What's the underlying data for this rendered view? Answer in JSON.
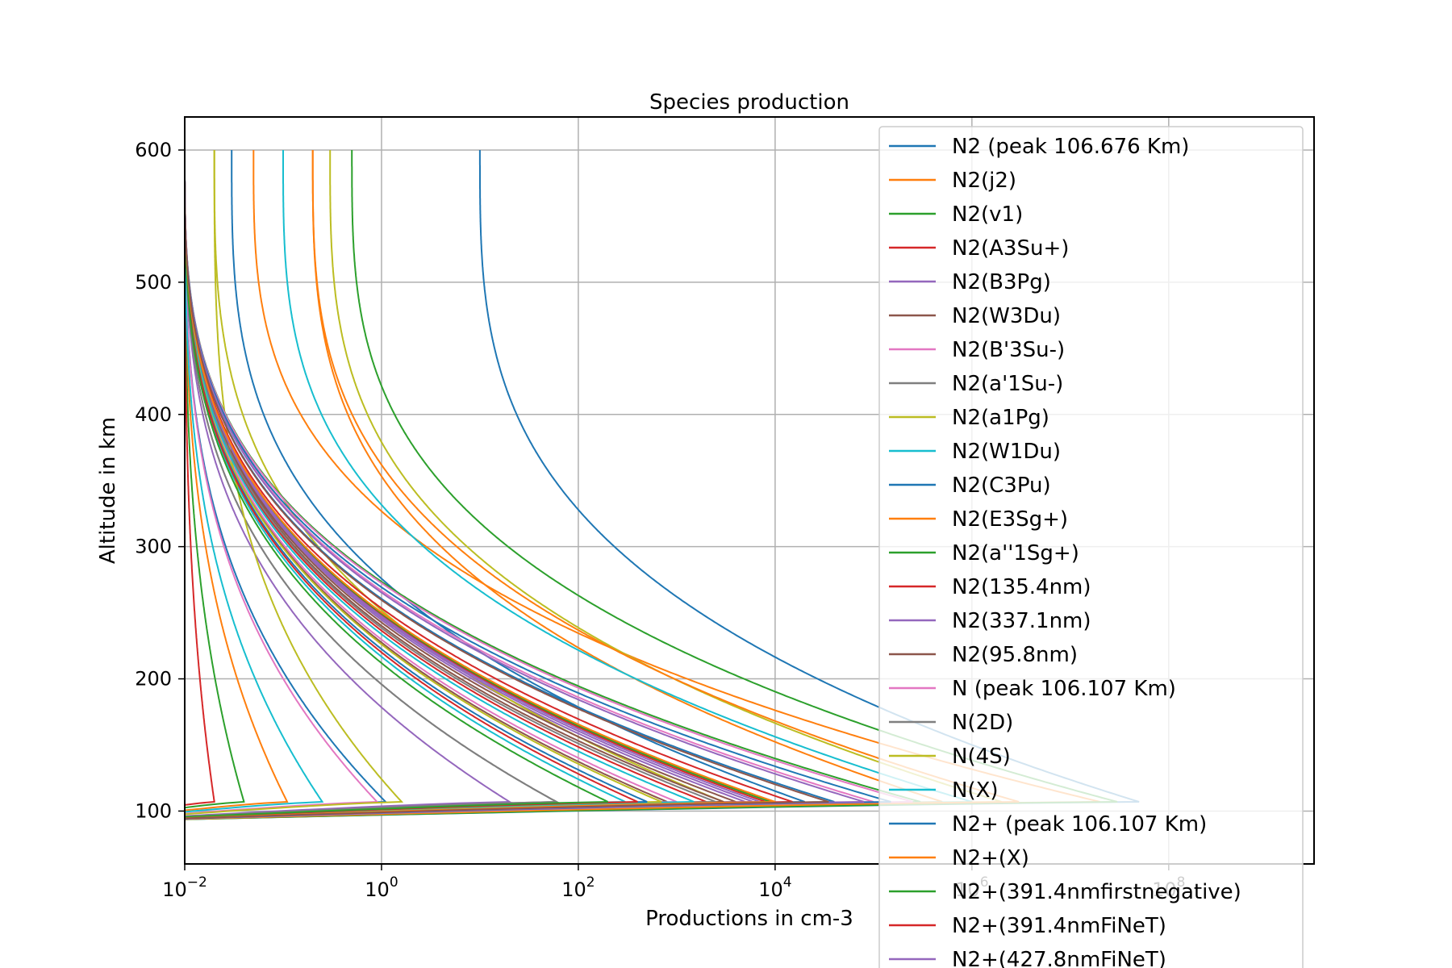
{
  "chart_data": {
    "type": "line",
    "title": "Species production",
    "xlabel": "Productions in cm-3",
    "ylabel": "Altitude in km",
    "xscale": "log",
    "xlim": [
      0.01,
      3000000000
    ],
    "ylim": [
      60,
      625
    ],
    "x_ticks": [
      {
        "value": 0.01,
        "base": "10",
        "exp": "−2"
      },
      {
        "value": 1,
        "base": "10",
        "exp": "0"
      },
      {
        "value": 100,
        "base": "10",
        "exp": "2"
      },
      {
        "value": 10000,
        "base": "10",
        "exp": "4"
      },
      {
        "value": 1000000,
        "base": "10",
        "exp": "6"
      },
      {
        "value": 100000000,
        "base": "10",
        "exp": "8"
      }
    ],
    "y_ticks": [
      100,
      200,
      300,
      400,
      500,
      600
    ],
    "grid": true,
    "legend_position": "top-right",
    "series": [
      {
        "name": "N2 (peak 106.676 Km)",
        "color": "#1f77b4",
        "peak": 50000000,
        "top": 10,
        "base": 0.01
      },
      {
        "name": "N2(j2)",
        "color": "#ff7f0e",
        "peak": 20000000,
        "top": 0.05,
        "base": 0.01
      },
      {
        "name": "N2(v1)",
        "color": "#2ca02c",
        "peak": 30000000,
        "top": 0.5,
        "base": 0.01
      },
      {
        "name": "N2(A3Su+)",
        "color": "#d62728",
        "peak": 2000,
        "top": 0.01,
        "base": 0.01
      },
      {
        "name": "N2(B3Pg)",
        "color": "#9467bd",
        "peak": 5000,
        "top": 0.01,
        "base": 0.01
      },
      {
        "name": "N2(W3Du)",
        "color": "#8c564b",
        "peak": 800,
        "top": 0.01,
        "base": 0.01
      },
      {
        "name": "N2(B'3Su-)",
        "color": "#e377c2",
        "peak": 1000,
        "top": 0.01,
        "base": 0.01
      },
      {
        "name": "N2(a'1Su-)",
        "color": "#7f7f7f",
        "peak": 60,
        "top": 0.01,
        "base": 0.01
      },
      {
        "name": "N2(a1Pg)",
        "color": "#bcbd22",
        "peak": 3000,
        "top": 0.02,
        "base": 0.01
      },
      {
        "name": "N2(W1Du)",
        "color": "#17becf",
        "peak": 300,
        "top": 0.01,
        "base": 0.01
      },
      {
        "name": "N2(C3Pu)",
        "color": "#1f77b4",
        "peak": 1.1,
        "top": 0.01,
        "base": 0.01
      },
      {
        "name": "N2(E3Sg+)",
        "color": "#ff7f0e",
        "peak": 0.11,
        "top": 0.01,
        "base": 0.01
      },
      {
        "name": "N2(a''1Sg+)",
        "color": "#2ca02c",
        "peak": 0.04,
        "top": 0.01,
        "base": 0.01
      },
      {
        "name": "N2(135.4nm)",
        "color": "#d62728",
        "peak": 0.02,
        "top": 0.01,
        "base": 0.01
      },
      {
        "name": "N2(337.1nm)",
        "color": "#9467bd",
        "peak": 20,
        "top": 0.01,
        "base": 0.01
      },
      {
        "name": "N2(95.8nm)",
        "color": "#8c564b",
        "peak": 4000,
        "top": 0.01,
        "base": 0.01
      },
      {
        "name": "N (peak 106.107 Km)",
        "color": "#e377c2",
        "peak": 0.9,
        "top": 0.01,
        "base": 0.01
      },
      {
        "name": "N(2D)",
        "color": "#7f7f7f",
        "peak": 60,
        "top": 0.01,
        "base": 0.01
      },
      {
        "name": "N(4S)",
        "color": "#bcbd22",
        "peak": 1.6,
        "top": 0.02,
        "base": 0.01
      },
      {
        "name": "N(X)",
        "color": "#17becf",
        "peak": 0.25,
        "top": 0.01,
        "base": 0.01
      },
      {
        "name": "N2+ (peak 106.107 Km)",
        "color": "#1f77b4",
        "peak": 20000,
        "top": 0.03,
        "base": 0.01
      },
      {
        "name": "N2+(X)",
        "color": "#ff7f0e",
        "peak": 500000,
        "top": 0.2,
        "base": 0.01
      },
      {
        "name": "N2+(391.4nmfirstnegative)",
        "color": "#2ca02c",
        "peak": 300000,
        "top": 0.01,
        "base": 0.01
      },
      {
        "name": "N2+(391.4nmFiNeT)",
        "color": "#d62728",
        "peak": 8000,
        "top": 0.01,
        "base": 0.01
      },
      {
        "name": "N2+(427.8nmFiNeT)",
        "color": "#9467bd",
        "peak": 6000,
        "top": 0.01,
        "base": 0.01
      }
    ],
    "extra_curves": [
      {
        "color": "#17becf",
        "peak": 1000000,
        "top": 0.1
      },
      {
        "color": "#bcbd22",
        "peak": 2000000,
        "top": 0.3
      },
      {
        "color": "#ff7f0e",
        "peak": 3000000,
        "top": 0.2
      },
      {
        "color": "#e377c2",
        "peak": 100000,
        "top": 0.01
      },
      {
        "color": "#1f77b4",
        "peak": 40000,
        "top": 0.01
      },
      {
        "color": "#d62728",
        "peak": 15000,
        "top": 0.01
      },
      {
        "color": "#2ca02c",
        "peak": 9000,
        "top": 0.01
      },
      {
        "color": "#9467bd",
        "peak": 7000,
        "top": 0.01
      },
      {
        "color": "#8c564b",
        "peak": 3000,
        "top": 0.01
      },
      {
        "color": "#7f7f7f",
        "peak": 2500,
        "top": 0.01
      },
      {
        "color": "#17becf",
        "peak": 1500,
        "top": 0.01
      },
      {
        "color": "#bcbd22",
        "peak": 700,
        "top": 0.01
      },
      {
        "color": "#1f77b4",
        "peak": 500,
        "top": 0.01
      },
      {
        "color": "#d62728",
        "peak": 400,
        "top": 0.01
      },
      {
        "color": "#2ca02c",
        "peak": 200,
        "top": 0.01
      },
      {
        "color": "#ff7f0e",
        "peak": 10000,
        "top": 0.01
      },
      {
        "color": "#e377c2",
        "peak": 250000,
        "top": 0.01
      },
      {
        "color": "#1f77b4",
        "peak": 150000,
        "top": 0.01
      },
      {
        "color": "#9467bd",
        "peak": 80000,
        "top": 0.01
      },
      {
        "color": "#8c564b",
        "peak": 35000,
        "top": 0.01
      }
    ]
  }
}
